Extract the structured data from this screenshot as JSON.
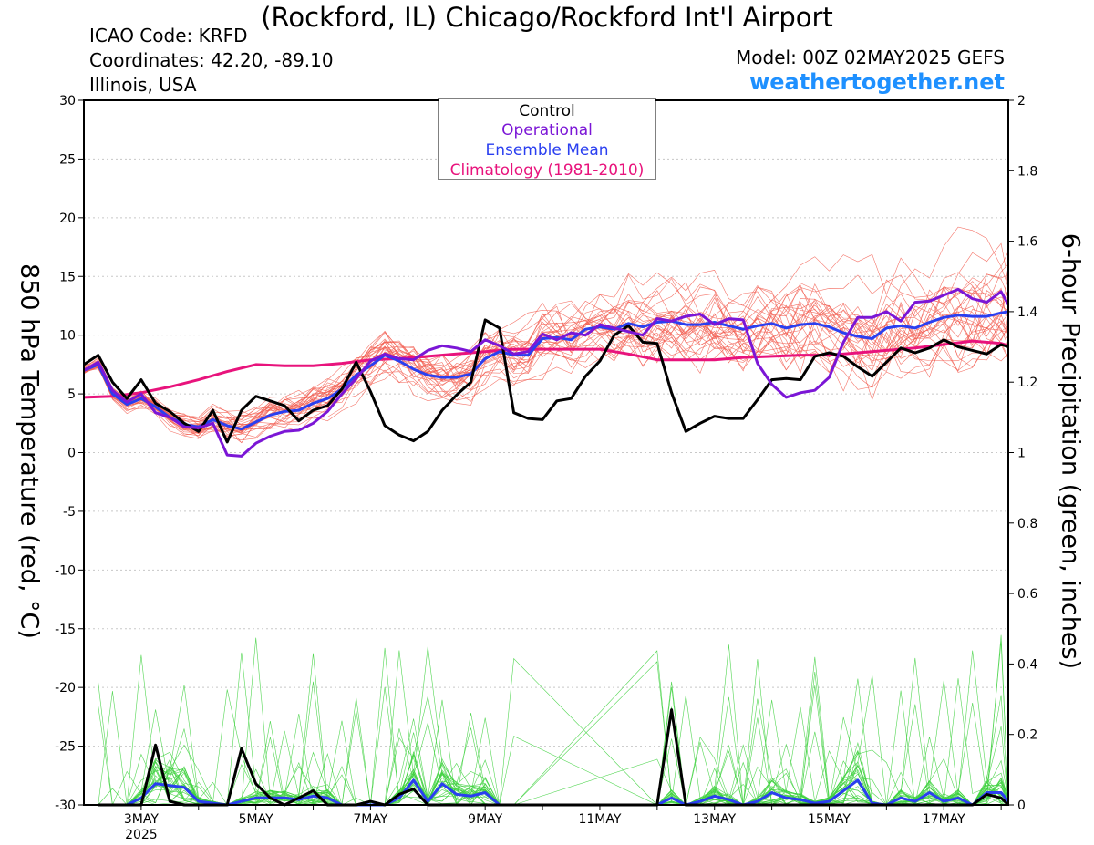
{
  "header": {
    "title": "(Rockford, IL) Chicago/Rockford Int'l Airport",
    "icao": "ICAO Code: KRFD",
    "coordinates": "Coordinates: 42.20, -89.10",
    "region": "Illinois, USA",
    "model": "Model: 00Z 02MAY2025 GEFS",
    "site": "weathertogether.net"
  },
  "colors": {
    "control": "#000000",
    "operational": "#7b16d6",
    "ensemble_mean": "#2a3ff0",
    "climatology": "#e8137c",
    "members_temp": "#f25c4f",
    "members_precip": "#3fd23f"
  },
  "chart_data": {
    "type": "line",
    "xlabel": "",
    "ylabel": "850 hPa Temperature (red, °C)",
    "ylabel_right": "6-hour Precipitation (green, inches)",
    "year_label": "2025",
    "x_tick_labels": [
      "3MAY",
      "5MAY",
      "7MAY",
      "9MAY",
      "11MAY",
      "13MAY",
      "15MAY",
      "17MAY"
    ],
    "x_tick_days": [
      3,
      5,
      7,
      9,
      11,
      13,
      15,
      17
    ],
    "x_range_days": [
      2.0,
      18.125
    ],
    "ylim": [
      -30,
      30
    ],
    "y_ticks": [
      30,
      25,
      20,
      15,
      10,
      5,
      0,
      -5,
      -10,
      -15,
      -20,
      -25,
      -30
    ],
    "ylim_right": [
      0,
      2
    ],
    "y_ticks_right": [
      "2",
      "1.8",
      "1.6",
      "1.4",
      "1.2",
      "1",
      "0.8",
      "0.6",
      "0.4",
      "0.2",
      "0"
    ],
    "grid": "horizontal dotted",
    "legend_position": "top-center",
    "legend": [
      "Control",
      "Operational",
      "Ensemble Mean",
      "Climatology (1981-2010)"
    ],
    "series": [
      {
        "name": "Control",
        "kind": "temperature",
        "x": [
          2.0,
          2.25,
          2.5,
          2.75,
          3.0,
          3.25,
          3.5,
          3.75,
          4.0,
          4.25,
          4.5,
          4.75,
          5.0,
          5.25,
          5.5,
          5.75,
          6.0,
          6.25,
          6.5,
          6.75,
          7.0,
          7.25,
          7.5,
          7.75,
          8.0,
          8.25,
          8.5,
          8.75,
          9.0,
          9.25,
          9.5,
          9.75,
          10.0,
          10.25,
          10.5,
          10.75,
          11.0,
          11.25,
          11.5,
          11.75,
          12.0,
          12.25,
          12.5,
          12.75,
          13.0,
          13.25,
          13.5,
          13.75,
          14.0,
          14.25,
          14.5,
          14.75,
          15.0,
          15.25,
          15.5,
          15.75,
          16.0,
          16.25,
          16.5,
          16.75,
          17.0,
          17.25,
          17.5,
          17.75,
          18.0,
          18.125
        ],
        "values": [
          7.5,
          8.3,
          6.0,
          4.6,
          6.2,
          4.2,
          3.5,
          2.5,
          1.8,
          3.6,
          0.9,
          3.6,
          4.8,
          4.4,
          4.0,
          2.7,
          3.6,
          4.0,
          5.4,
          7.7,
          5.2,
          2.3,
          1.5,
          1.0,
          1.8,
          3.6,
          4.9,
          6.0,
          11.3,
          10.6,
          3.4,
          2.9,
          2.8,
          4.4,
          4.6,
          6.5,
          7.8,
          10.0,
          10.8,
          9.4,
          9.3,
          5.1,
          1.8,
          2.5,
          3.1,
          2.9,
          2.9,
          4.5,
          6.2,
          6.3,
          6.2,
          8.2,
          8.5,
          8.2,
          7.3,
          6.5,
          7.7,
          8.9,
          8.5,
          8.9,
          9.6,
          9.0,
          8.7,
          8.4,
          9.2,
          9.0
        ]
      },
      {
        "name": "Operational",
        "kind": "temperature",
        "x": [
          2.0,
          2.25,
          2.5,
          2.75,
          3.0,
          3.25,
          3.5,
          3.75,
          4.0,
          4.25,
          4.5,
          4.75,
          5.0,
          5.25,
          5.5,
          5.75,
          6.0,
          6.25,
          6.5,
          6.75,
          7.0,
          7.25,
          7.5,
          7.75,
          8.0,
          8.25,
          8.5,
          8.75,
          9.0,
          9.25,
          9.5,
          9.75,
          10.0,
          10.25,
          10.5,
          10.75,
          11.0,
          11.25,
          11.5,
          11.75,
          12.0,
          12.25,
          12.5,
          12.75,
          13.0,
          13.25,
          13.5,
          13.75,
          14.0,
          14.25,
          14.5,
          14.75,
          15.0,
          15.25,
          15.5,
          15.75,
          16.0,
          16.25,
          16.5,
          16.75,
          17.0,
          17.25,
          17.5,
          17.75,
          18.0,
          18.125
        ],
        "values": [
          7.0,
          7.7,
          5.3,
          4.3,
          5.0,
          3.4,
          3.0,
          2.2,
          2.1,
          2.5,
          -0.2,
          -0.3,
          0.8,
          1.4,
          1.8,
          1.9,
          2.5,
          3.5,
          5.0,
          6.3,
          7.8,
          8.4,
          8.0,
          7.9,
          8.7,
          9.1,
          8.9,
          8.6,
          9.6,
          9.1,
          8.4,
          8.6,
          10.1,
          9.6,
          10.2,
          10.0,
          10.9,
          10.6,
          10.3,
          10.0,
          11.4,
          11.2,
          11.6,
          11.8,
          10.9,
          11.4,
          11.3,
          7.6,
          5.8,
          4.7,
          5.1,
          5.3,
          6.4,
          9.4,
          11.5,
          11.5,
          12.0,
          11.2,
          12.8,
          12.9,
          13.4,
          13.9,
          13.1,
          12.8,
          13.7,
          12.6
        ]
      },
      {
        "name": "Ensemble Mean",
        "kind": "temperature",
        "x": [
          2.0,
          2.25,
          2.5,
          2.75,
          3.0,
          3.25,
          3.5,
          3.75,
          4.0,
          4.25,
          4.5,
          4.75,
          5.0,
          5.25,
          5.5,
          5.75,
          6.0,
          6.25,
          6.5,
          6.75,
          7.0,
          7.25,
          7.5,
          7.75,
          8.0,
          8.25,
          8.5,
          8.75,
          9.0,
          9.25,
          9.5,
          9.75,
          10.0,
          10.25,
          10.5,
          10.75,
          11.0,
          11.25,
          11.5,
          11.75,
          12.0,
          12.25,
          12.5,
          12.75,
          13.0,
          13.25,
          13.5,
          13.75,
          14.0,
          14.25,
          14.5,
          14.75,
          15.0,
          15.25,
          15.5,
          15.75,
          16.0,
          16.25,
          16.5,
          16.75,
          17.0,
          17.25,
          17.5,
          17.75,
          18.0,
          18.125
        ],
        "values": [
          7.0,
          7.5,
          5.0,
          4.1,
          4.6,
          3.9,
          3.0,
          2.4,
          2.2,
          2.8,
          2.3,
          2.0,
          2.6,
          3.2,
          3.5,
          3.6,
          4.2,
          4.6,
          5.4,
          6.6,
          7.4,
          8.3,
          7.8,
          7.1,
          6.6,
          6.4,
          6.4,
          6.7,
          8.0,
          8.6,
          8.3,
          8.3,
          9.7,
          9.8,
          9.6,
          10.5,
          10.7,
          10.5,
          11.0,
          10.7,
          11.1,
          11.2,
          10.9,
          10.9,
          11.1,
          10.8,
          10.5,
          10.8,
          11.0,
          10.6,
          10.9,
          11.0,
          10.7,
          10.2,
          9.9,
          9.7,
          10.6,
          10.8,
          10.6,
          11.1,
          11.5,
          11.7,
          11.6,
          11.6,
          11.9,
          12.0
        ]
      },
      {
        "name": "Climatology (1981-2010)",
        "kind": "temperature",
        "x": [
          2.0,
          2.5,
          3.0,
          3.5,
          4.0,
          4.5,
          5.0,
          5.5,
          6.0,
          6.5,
          7.0,
          7.5,
          8.0,
          8.5,
          9.0,
          9.5,
          10.0,
          10.5,
          11.0,
          11.5,
          12.0,
          12.5,
          13.0,
          13.5,
          14.0,
          14.5,
          15.0,
          15.5,
          16.0,
          16.5,
          17.0,
          17.5,
          18.0,
          18.125
        ],
        "values": [
          4.7,
          4.8,
          5.1,
          5.6,
          6.2,
          6.9,
          7.5,
          7.4,
          7.4,
          7.6,
          7.9,
          8.0,
          8.2,
          8.4,
          8.6,
          8.8,
          8.8,
          8.8,
          8.8,
          8.4,
          7.9,
          7.9,
          7.9,
          8.1,
          8.2,
          8.3,
          8.3,
          8.5,
          8.7,
          8.9,
          9.2,
          9.5,
          9.3,
          9.1
        ]
      },
      {
        "name": "Control",
        "kind": "precipitation",
        "x": [
          2.25,
          2.5,
          2.75,
          3.0,
          3.25,
          3.5,
          3.75,
          4.0,
          4.25,
          4.5,
          4.75,
          5.0,
          5.25,
          5.5,
          5.75,
          6.0,
          6.25,
          6.5,
          6.75,
          7.0,
          7.25,
          7.5,
          7.75,
          8.0,
          8.25,
          12.0,
          12.25,
          12.5,
          12.75,
          17.5,
          17.75,
          18.0,
          18.125
        ],
        "values": [
          0.0,
          0.0,
          0.0,
          0.0,
          0.17,
          0.01,
          0.0,
          0.0,
          0.0,
          0.0,
          0.16,
          0.06,
          0.02,
          0.0,
          0.02,
          0.04,
          0.0,
          0.0,
          0.0,
          0.01,
          0.0,
          0.03,
          0.045,
          0.0,
          0.0,
          0.0,
          0.27,
          0.0,
          0.0,
          0.0,
          0.03,
          0.02,
          0.0
        ]
      },
      {
        "name": "Ensemble Mean",
        "kind": "precipitation",
        "x": [
          2.25,
          2.5,
          2.75,
          3.0,
          3.25,
          3.5,
          3.75,
          4.0,
          4.25,
          4.5,
          4.75,
          5.0,
          5.25,
          5.5,
          5.75,
          6.0,
          6.25,
          6.5,
          6.75,
          7.0,
          7.25,
          7.5,
          7.75,
          8.0,
          8.25,
          8.5,
          8.75,
          9.0,
          9.25,
          9.5,
          12.0,
          12.25,
          12.5,
          12.75,
          13.0,
          13.25,
          13.5,
          13.75,
          14.0,
          14.25,
          14.5,
          14.75,
          15.0,
          15.25,
          15.5,
          15.75,
          16.0,
          16.25,
          16.5,
          16.75,
          17.0,
          17.25,
          17.5,
          17.75,
          18.0,
          18.125
        ],
        "values": [
          0.0,
          0.0,
          0.0,
          0.02,
          0.06,
          0.055,
          0.05,
          0.01,
          0.005,
          0.0,
          0.01,
          0.02,
          0.02,
          0.02,
          0.015,
          0.025,
          0.02,
          0.0,
          0.0,
          0.0,
          0.0,
          0.02,
          0.07,
          0.01,
          0.06,
          0.03,
          0.025,
          0.035,
          0.0,
          0.0,
          0.0,
          0.02,
          0.0,
          0.01,
          0.025,
          0.015,
          0.0,
          0.01,
          0.035,
          0.02,
          0.015,
          0.005,
          0.01,
          0.04,
          0.07,
          0.005,
          0.0,
          0.02,
          0.01,
          0.035,
          0.01,
          0.02,
          0.0,
          0.035,
          0.035,
          0.01
        ]
      }
    ]
  }
}
